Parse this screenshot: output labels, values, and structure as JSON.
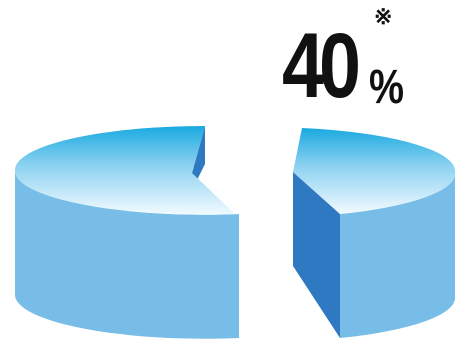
{
  "chart_data": {
    "type": "pie",
    "style": "3d-exploded",
    "values": [
      60,
      40
    ],
    "highlight": {
      "value": "40",
      "unit": "%",
      "note": "※"
    },
    "colors": {
      "top_highlight": "#F2FAFF",
      "top_main": "#1AA9E0",
      "side": "#78BDE7",
      "cut_face": "#2F79C3"
    }
  }
}
